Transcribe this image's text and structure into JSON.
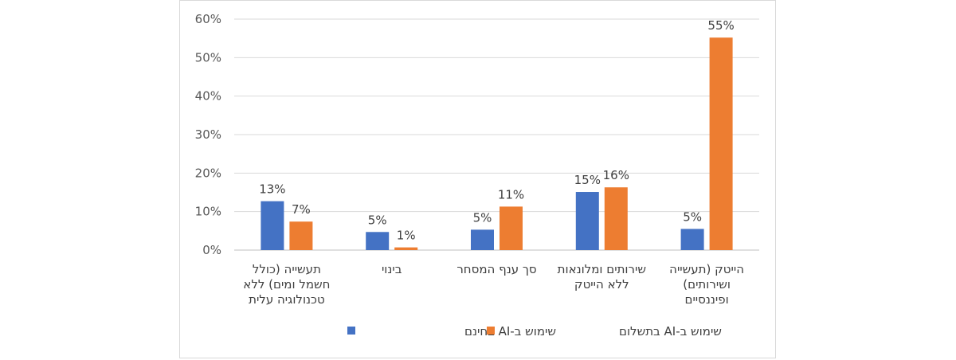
{
  "chart_data": {
    "type": "bar",
    "title": "",
    "xlabel": "",
    "ylabel": "",
    "ylim": [
      0,
      60
    ],
    "yticks": [
      "0%",
      "10%",
      "20%",
      "30%",
      "40%",
      "50%",
      "60%"
    ],
    "grid": true,
    "legend_position": "bottom",
    "categories": [
      [
        "תעשייה (כולל",
        "חשמל ומים) ללא",
        "טכנולוגיה עלית"
      ],
      [
        "בינוי"
      ],
      [
        "סך ענף המסחר"
      ],
      [
        "שירותים ומלונאות",
        "ללא הייטק"
      ],
      [
        "הייטק (תעשייה",
        "ושירותים)",
        "ופיננסיים"
      ]
    ],
    "series": [
      {
        "name": "שימוש ב-AI בחינם",
        "color": "#4472c4",
        "values": [
          12.7,
          4.7,
          5.3,
          15.1,
          5.5
        ],
        "labels": [
          "13%",
          "5%",
          "5%",
          "15%",
          "5%"
        ]
      },
      {
        "name": "שימוש ב-AI בתשלום",
        "color": "#ed7d31",
        "values": [
          7.4,
          0.7,
          11.3,
          16.3,
          55.2
        ],
        "labels": [
          "7%",
          "1%",
          "11%",
          "16%",
          "55%"
        ]
      }
    ]
  }
}
